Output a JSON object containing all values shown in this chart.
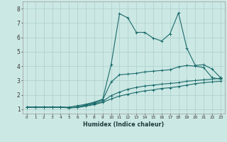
{
  "xlabel": "Humidex (Indice chaleur)",
  "bg_color": "#cce8e4",
  "grid_color": "#aacfcb",
  "line_color": "#1a6b6b",
  "xlim": [
    -0.5,
    23.5
  ],
  "ylim": [
    0.7,
    8.5
  ],
  "yticks": [
    1,
    2,
    3,
    4,
    5,
    6,
    7,
    8
  ],
  "xtick_labels": [
    "0",
    "1",
    "2",
    "3",
    "4",
    "5",
    "6",
    "7",
    "8",
    "9",
    "10",
    "11",
    "12",
    "13",
    "14",
    "15",
    "16",
    "17",
    "18",
    "19",
    "20",
    "21",
    "22",
    "23"
  ],
  "lines": [
    {
      "x": [
        0,
        1,
        2,
        3,
        4,
        5,
        6,
        7,
        8,
        9,
        10,
        11,
        12,
        13,
        14,
        15,
        16,
        17,
        18,
        19,
        20,
        21,
        22,
        23
      ],
      "y": [
        1.15,
        1.15,
        1.15,
        1.15,
        1.15,
        1.15,
        1.25,
        1.35,
        1.5,
        1.7,
        4.1,
        7.65,
        7.35,
        6.35,
        6.35,
        5.95,
        5.75,
        6.25,
        7.7,
        5.25,
        4.05,
        4.1,
        3.8,
        3.2
      ]
    },
    {
      "x": [
        0,
        1,
        2,
        3,
        4,
        5,
        6,
        7,
        8,
        9,
        10,
        11,
        12,
        13,
        14,
        15,
        16,
        17,
        18,
        19,
        20,
        21,
        22,
        23
      ],
      "y": [
        1.15,
        1.15,
        1.15,
        1.15,
        1.15,
        1.1,
        1.15,
        1.3,
        1.45,
        1.65,
        2.9,
        3.4,
        3.45,
        3.5,
        3.6,
        3.65,
        3.7,
        3.75,
        3.95,
        4.05,
        4.0,
        3.9,
        3.2,
        3.1
      ]
    },
    {
      "x": [
        0,
        1,
        2,
        3,
        4,
        5,
        6,
        7,
        8,
        9,
        10,
        11,
        12,
        13,
        14,
        15,
        16,
        17,
        18,
        19,
        20,
        21,
        22,
        23
      ],
      "y": [
        1.15,
        1.15,
        1.15,
        1.15,
        1.15,
        1.1,
        1.15,
        1.25,
        1.38,
        1.55,
        1.95,
        2.2,
        2.4,
        2.52,
        2.62,
        2.68,
        2.75,
        2.8,
        2.85,
        2.95,
        3.0,
        3.05,
        3.1,
        3.15
      ]
    },
    {
      "x": [
        0,
        1,
        2,
        3,
        4,
        5,
        6,
        7,
        8,
        9,
        10,
        11,
        12,
        13,
        14,
        15,
        16,
        17,
        18,
        19,
        20,
        21,
        22,
        23
      ],
      "y": [
        1.15,
        1.15,
        1.15,
        1.15,
        1.15,
        1.1,
        1.12,
        1.22,
        1.32,
        1.48,
        1.72,
        1.92,
        2.05,
        2.18,
        2.28,
        2.35,
        2.45,
        2.5,
        2.58,
        2.68,
        2.78,
        2.85,
        2.9,
        2.95
      ]
    }
  ]
}
